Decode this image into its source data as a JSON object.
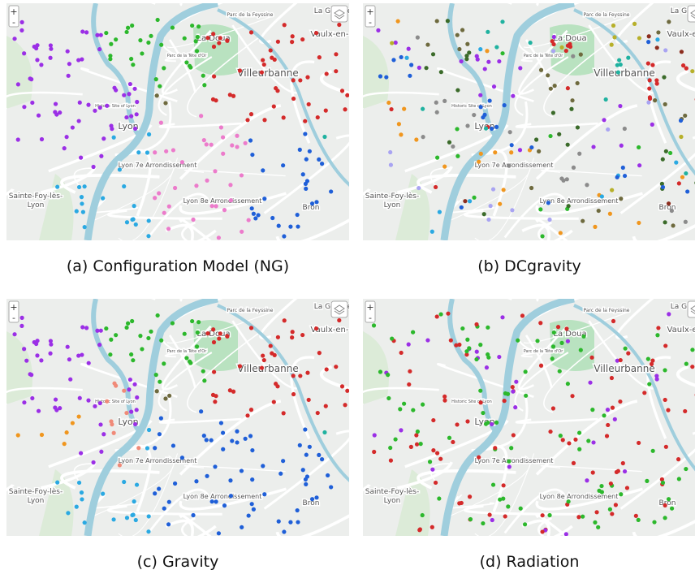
{
  "figure": {
    "panels": [
      {
        "caption": "(a) Configuration Model (NG)"
      },
      {
        "caption": "(b) DCgravity"
      },
      {
        "caption": "(c) Gravity"
      },
      {
        "caption": "(d) Radiation"
      }
    ],
    "zoom_controls": [
      "+",
      "-"
    ],
    "map_labels": [
      "La Doua",
      "Villeurbanne",
      "Vaulx-en-",
      "Lyon",
      "Parc de la Tête d'Or",
      "Historic Site of Lyon",
      "Lyon 7e Arrondissement",
      "Lyon 8e Arrondissement",
      "Sainte-Foy-lès-",
      "Lyon",
      "Bron",
      "La Grappe",
      "Parc de la Feyssine"
    ]
  }
}
